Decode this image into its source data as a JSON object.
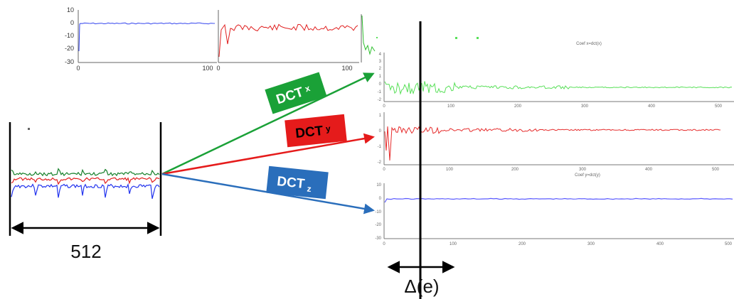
{
  "colors": {
    "x": "#1aa137",
    "y": "#e51b1b",
    "z": "#2a6ebb",
    "sig_blue": "#2233ee",
    "sig_red": "#e11e1e",
    "sig_green": "#16802a",
    "coef_green": "#59e059",
    "coef_red": "#e62d2d",
    "coef_blue": "#5a5aff"
  },
  "top_row": {
    "y_ticks": [
      "10",
      "0",
      "-10",
      "-20",
      "-30"
    ],
    "x_ticks_left": [
      "0",
      "100"
    ],
    "x_ticks_mid": [
      "0",
      "100"
    ]
  },
  "input_signal": {
    "length_label": "512"
  },
  "transforms": [
    {
      "main": "DCT",
      "sub": "x",
      "color_key": "x"
    },
    {
      "main": "DCT",
      "sub": "y",
      "color_key": "y"
    },
    {
      "main": "DCT",
      "sub": "z",
      "color_key": "z"
    }
  ],
  "coef_panels": {
    "panel_x": {
      "title": "Coef x=dct(x)",
      "y_ticks": [
        "4",
        "3",
        "2",
        "1",
        "0",
        "-1",
        "-2"
      ],
      "x_ticks": [
        "0",
        "100",
        "200",
        "300",
        "400",
        "500"
      ]
    },
    "panel_y": {
      "title": "Coef y=dct(y)",
      "y_ticks": [
        "1",
        "0",
        "-1",
        "-2"
      ],
      "x_ticks": [
        "0",
        "100",
        "200",
        "300",
        "400",
        "500"
      ]
    },
    "panel_z": {
      "title": "Coef z=dct(z)",
      "y_ticks": [
        "10",
        "0",
        "-10",
        "-20",
        "-30"
      ],
      "x_ticks": [
        "0",
        "100",
        "200",
        "300",
        "400",
        "500"
      ]
    }
  },
  "cutoff": {
    "label": "Δ(e)"
  }
}
